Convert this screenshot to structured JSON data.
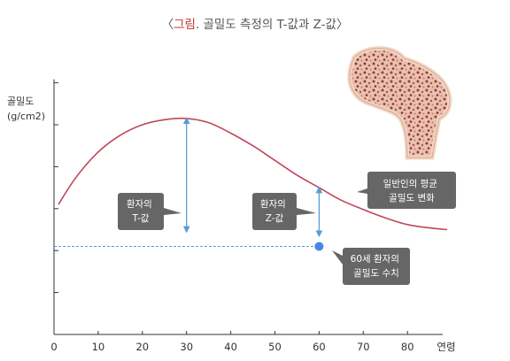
{
  "figure": {
    "title_prefix": "〈",
    "title_accent": "그림",
    "title_rest": ". 골밀도 측정의 T-값과 Z-값〉"
  },
  "illustration": {
    "name": "bone-cross-section-image"
  },
  "colors": {
    "curve": "#c0465a",
    "arrow": "#5b9bd5",
    "dashed": "#5b9bd5",
    "marker": "#4a86e8",
    "callout_bg": "#666666",
    "axis": "#333333",
    "title_accent": "#c0392b"
  },
  "chart_data": {
    "type": "line",
    "title": "〈그림. 골밀도 측정의 T-값과 Z-값〉",
    "ylabel_lines": [
      "골밀도",
      "(g/cm2)"
    ],
    "xlabel": "연령",
    "xlim": [
      0,
      88
    ],
    "ylim": [
      0,
      6
    ],
    "x_ticks": [
      0,
      10,
      20,
      30,
      40,
      50,
      60,
      70,
      80
    ],
    "y_ticks": [
      1,
      2,
      3,
      4,
      5,
      6
    ],
    "grid": false,
    "series": [
      {
        "name": "일반인의 평균 골밀도 변화",
        "x": [
          1,
          5,
          10,
          15,
          20,
          25,
          30,
          35,
          40,
          45,
          50,
          55,
          60,
          65,
          70,
          75,
          80,
          85,
          89
        ],
        "y": [
          3.1,
          3.75,
          4.35,
          4.75,
          5.0,
          5.12,
          5.15,
          5.05,
          4.8,
          4.5,
          4.15,
          3.8,
          3.5,
          3.2,
          2.98,
          2.78,
          2.62,
          2.54,
          2.5
        ]
      }
    ],
    "patient_point": {
      "x": 60,
      "y": 2.1
    },
    "t_score_arrow": {
      "x": 30,
      "y_from": 5.15,
      "y_to": 2.45
    },
    "z_score_arrow": {
      "x": 60,
      "y_from": 3.5,
      "y_to": 2.35
    },
    "callouts": {
      "t_score": [
        "환자의",
        "T-값"
      ],
      "z_score": [
        "환자의",
        "Z-값"
      ],
      "mean_curve": [
        "일반인의 평균",
        "골밀도 변화"
      ],
      "patient": [
        "60세 환자의",
        "골밀도 수치"
      ]
    }
  }
}
